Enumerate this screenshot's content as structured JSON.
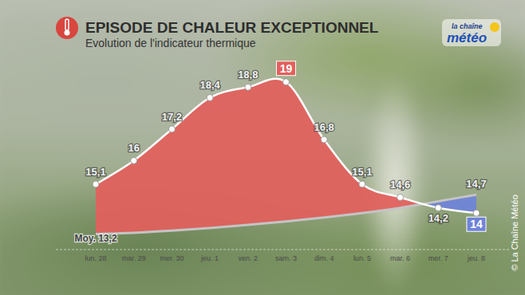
{
  "chart_data": {
    "type": "line",
    "title": "EPISODE DE CHALEUR EXCEPTIONNEL",
    "subtitle": "Evolution de l'indicateur thermique",
    "annotations": [
      "la chaîne",
      "météo",
      "© La Chaîne Météo"
    ],
    "categories": [
      "lun. 28",
      "mar. 29",
      "mer. 30",
      "jeu. 1",
      "ven. 2",
      "sam. 3",
      "dim. 4",
      "lun. 5",
      "mar. 6",
      "mer. 7",
      "jeu. 8"
    ],
    "series": [
      {
        "color": "#e2605d",
        "values": [
          15.1,
          16,
          17.2,
          18.4,
          18.8,
          19,
          16.8,
          15.1,
          14.6,
          14.2,
          14
        ],
        "value_labels": [
          "15,1",
          "16",
          "17,2",
          "18,4",
          "18,8",
          "19",
          "16,8",
          "15,1",
          "14,6",
          "14,2",
          "14"
        ],
        "marker": "circle"
      },
      {
        "color": "#6f83d8",
        "values": [
          13.2,
          13.25,
          13.33,
          13.43,
          13.55,
          13.68,
          13.83,
          14.0,
          14.2,
          14.45,
          14.7
        ],
        "value_labels": [
          "Moy. 13,2",
          null,
          null,
          null,
          null,
          null,
          null,
          null,
          null,
          null,
          "14,7"
        ],
        "marker": "none"
      }
    ],
    "ylim": [
      12.7,
      19.6
    ],
    "yticks": [],
    "grid": false,
    "data_labels": true,
    "tick_labels": "x"
  }
}
